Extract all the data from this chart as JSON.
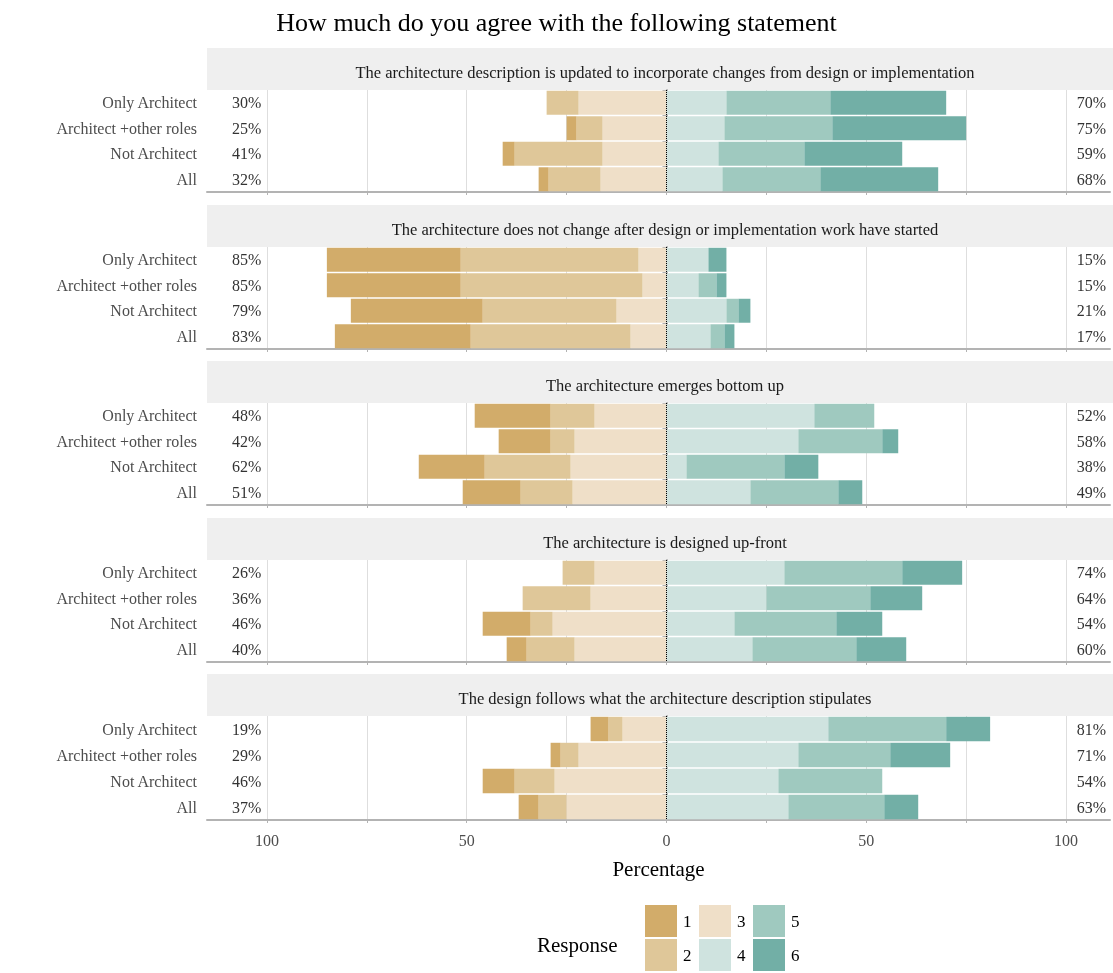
{
  "chart_data": [
    {
      "type": "bar",
      "orientation": "horizontal",
      "stacked": true,
      "title": "How much do you agree with the following statement",
      "subtitle": "The architecture description is updated to incorporate changes from design or implementation",
      "categories": [
        "Only Architect",
        "Architect +other roles",
        "Not Architect",
        "All"
      ],
      "xticks": [
        -100,
        -75,
        -50,
        -25,
        0,
        25,
        50,
        75,
        100
      ],
      "series": [
        {
          "color": "#efdfc8",
          "values": [
            -22,
            -16,
            -16,
            -16.5
          ]
        },
        {
          "color": "#dfc799",
          "values": [
            -8,
            -6.5,
            -22,
            -13
          ]
        },
        {
          "color": "#d2ac6a",
          "values": [
            0,
            -2.5,
            -3,
            -2.5
          ]
        },
        {
          "color": "#cfe3df",
          "values": [
            15,
            14.5,
            13,
            14
          ]
        },
        {
          "color": "#9fc9bf",
          "values": [
            26,
            27,
            21.5,
            24.5
          ]
        },
        {
          "color": "#72afa6",
          "values": [
            29,
            33.5,
            24.5,
            29.5
          ]
        }
      ],
      "xlim": [
        -115,
        111
      ],
      "grid": "x",
      "tick_labels": "y",
      "ref_lines": [
        {
          "axis": "x",
          "value": 0,
          "color": "#000000",
          "line_style": "dotted"
        }
      ],
      "annotations": [
        "30%",
        "70%",
        "25%",
        "75%",
        "41%",
        "59%",
        "32%",
        "68%"
      ]
    },
    {
      "type": "bar",
      "orientation": "horizontal",
      "stacked": true,
      "title": "The architecture does not change after design or implementation work have started",
      "categories": [
        "Only Architect",
        "Architect +other roles",
        "Not Architect",
        "All"
      ],
      "series": [
        {
          "color": "#efdfc8",
          "values": [
            -7,
            -6,
            -12.5,
            -9
          ]
        },
        {
          "color": "#dfc799",
          "values": [
            -44.5,
            -45.5,
            -33.5,
            -40
          ]
        },
        {
          "color": "#d2ac6a",
          "values": [
            -33.5,
            -33.5,
            -33,
            -34
          ]
        },
        {
          "color": "#cfe3df",
          "values": [
            10.5,
            8,
            15,
            11
          ]
        },
        {
          "color": "#9fc9bf",
          "values": [
            0,
            4.5,
            3,
            3.5
          ]
        },
        {
          "color": "#72afa6",
          "values": [
            4.5,
            2.5,
            3,
            2.5
          ]
        }
      ],
      "xlim": [
        -115,
        111
      ],
      "xticks": [
        -100,
        -75,
        -50,
        -25,
        0,
        25,
        50,
        75,
        100
      ],
      "grid": "x",
      "tick_labels": "y",
      "ref_lines": [
        {
          "axis": "x",
          "value": 0,
          "color": "#000000",
          "line_style": "dotted"
        }
      ],
      "annotations": [
        "85%",
        "15%",
        "85%",
        "15%",
        "79%",
        "21%",
        "83%",
        "17%"
      ]
    },
    {
      "type": "bar",
      "orientation": "horizontal",
      "stacked": true,
      "title": "The architecture emerges bottom up",
      "categories": [
        "Only Architect",
        "Architect +other roles",
        "Not Architect",
        "All"
      ],
      "series": [
        {
          "color": "#efdfc8",
          "values": [
            -18,
            -23,
            -24,
            -23.5
          ]
        },
        {
          "color": "#dfc799",
          "values": [
            -11,
            -6,
            -21.5,
            -13
          ]
        },
        {
          "color": "#d2ac6a",
          "values": [
            -19,
            -13,
            -16.5,
            -14.5
          ]
        },
        {
          "color": "#cfe3df",
          "values": [
            37,
            33,
            5,
            21
          ]
        },
        {
          "color": "#9fc9bf",
          "values": [
            15,
            21,
            24.5,
            22
          ]
        },
        {
          "color": "#72afa6",
          "values": [
            0,
            4,
            8.5,
            6
          ]
        }
      ],
      "xlim": [
        -115,
        111
      ],
      "xticks": [
        -100,
        -75,
        -50,
        -25,
        0,
        25,
        50,
        75,
        100
      ],
      "grid": "x",
      "tick_labels": "y",
      "ref_lines": [
        {
          "axis": "x",
          "value": 0,
          "color": "#000000",
          "line_style": "dotted"
        }
      ],
      "annotations": [
        "48%",
        "52%",
        "42%",
        "58%",
        "62%",
        "38%",
        "51%",
        "49%"
      ]
    },
    {
      "type": "bar",
      "orientation": "horizontal",
      "stacked": true,
      "title": "The architecture is designed up-front",
      "categories": [
        "Only Architect",
        "Architect +other roles",
        "Not Architect",
        "All"
      ],
      "series": [
        {
          "color": "#efdfc8",
          "values": [
            -18,
            -19,
            -28.5,
            -23
          ]
        },
        {
          "color": "#dfc799",
          "values": [
            -8,
            -17,
            -5.5,
            -12
          ]
        },
        {
          "color": "#d2ac6a",
          "values": [
            0,
            0,
            -12,
            -5
          ]
        },
        {
          "color": "#cfe3df",
          "values": [
            29.5,
            25,
            17,
            21.5
          ]
        },
        {
          "color": "#9fc9bf",
          "values": [
            29.5,
            26,
            25.5,
            26
          ]
        },
        {
          "color": "#72afa6",
          "values": [
            15,
            13,
            11.5,
            12.5
          ]
        }
      ],
      "xlim": [
        -115,
        111
      ],
      "xticks": [
        -100,
        -75,
        -50,
        -25,
        0,
        25,
        50,
        75,
        100
      ],
      "grid": "x",
      "tick_labels": "y",
      "ref_lines": [
        {
          "axis": "x",
          "value": 0,
          "color": "#000000",
          "line_style": "dotted"
        }
      ],
      "annotations": [
        "26%",
        "74%",
        "36%",
        "64%",
        "46%",
        "54%",
        "40%",
        "60%"
      ]
    },
    {
      "type": "bar",
      "orientation": "horizontal",
      "stacked": true,
      "title": "The design follows what the architecture description stipulates",
      "categories": [
        "Only Architect",
        "Architect +other roles",
        "Not Architect",
        "All"
      ],
      "series": [
        {
          "name": "3",
          "color": "#efdfc8",
          "values": [
            -11,
            -22,
            -28,
            -25
          ]
        },
        {
          "name": "2",
          "color": "#dfc799",
          "values": [
            -3.5,
            -4.5,
            -10,
            -7
          ]
        },
        {
          "name": "1",
          "color": "#d2ac6a",
          "values": [
            -4.5,
            -2.5,
            -8,
            -5
          ]
        },
        {
          "name": "4",
          "color": "#cfe3df",
          "values": [
            40.5,
            33,
            28,
            30.5
          ]
        },
        {
          "name": "5",
          "color": "#9fc9bf",
          "values": [
            29.5,
            23,
            26,
            24
          ]
        },
        {
          "name": "6",
          "color": "#72afa6",
          "values": [
            11,
            15,
            0,
            8.5
          ]
        }
      ],
      "xlim": [
        -115,
        111
      ],
      "xticks": [
        {
          "value": -100,
          "label": "100"
        },
        {
          "value": -75,
          "label": null
        },
        {
          "value": -50,
          "label": "50"
        },
        {
          "value": -25,
          "label": null
        },
        0,
        {
          "value": 25,
          "label": null
        },
        50,
        {
          "value": 75,
          "label": null
        },
        100
      ],
      "xlabel": "Percentage",
      "legend": "bottom",
      "legend_title": "Response",
      "grid": "x",
      "ref_lines": [
        {
          "axis": "x",
          "value": 0,
          "color": "#000000",
          "line_style": "dotted"
        }
      ],
      "annotations": [
        "19%",
        "81%",
        "29%",
        "71%",
        "46%",
        "54%",
        "37%",
        "63%"
      ]
    }
  ]
}
